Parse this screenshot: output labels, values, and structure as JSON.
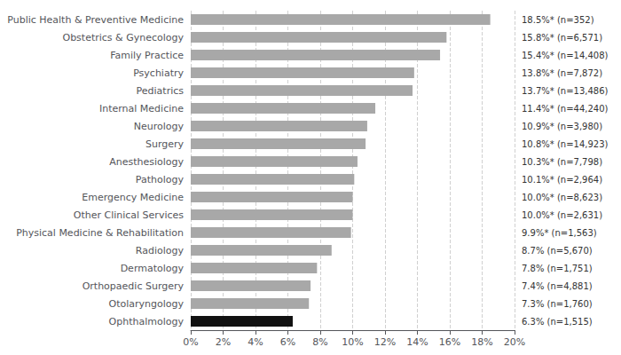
{
  "chart_data": {
    "type": "bar",
    "orientation": "horizontal",
    "categories": [
      "Public Health & Preventive Medicine",
      "Obstetrics & Gynecology",
      "Family Practice",
      "Psychiatry",
      "Pediatrics",
      "Internal Medicine",
      "Neurology",
      "Surgery",
      "Anesthesiology",
      "Pathology",
      "Emergency Medicine",
      "Other Clinical Services",
      "Physical Medicine & Rehabilitation",
      "Radiology",
      "Dermatology",
      "Orthopaedic Surgery",
      "Otolaryngology",
      "Ophthalmology"
    ],
    "values": [
      18.5,
      15.8,
      15.4,
      13.8,
      13.7,
      11.4,
      10.9,
      10.8,
      10.3,
      10.1,
      10.0,
      10.0,
      9.9,
      8.7,
      7.8,
      7.4,
      7.3,
      6.3
    ],
    "value_labels": [
      "18.5%* (n=352)",
      "15.8%* (n=6,571)",
      "15.4%* (n=14,408)",
      "13.8%* (n=7,872)",
      "13.7%* (n=13,486)",
      "11.4%* (n=44,240)",
      "10.9%* (n=3,980)",
      "10.8%* (n=14,923)",
      "10.3%* (n=7,798)",
      "10.1%* (n=2,964)",
      "10.0%* (n=8,623)",
      "10.0%* (n=2,631)",
      "9.9%* (n=1,563)",
      "8.7% (n=5,670)",
      "7.8% (n=1,751)",
      "7.4% (n=4,881)",
      "7.3% (n=1,760)",
      "6.3% (n=1,515)"
    ],
    "data_labels": true,
    "colors": [
      "#a8a8a8",
      "#a8a8a8",
      "#a8a8a8",
      "#a8a8a8",
      "#a8a8a8",
      "#a8a8a8",
      "#a8a8a8",
      "#a8a8a8",
      "#a8a8a8",
      "#a8a8a8",
      "#a8a8a8",
      "#a8a8a8",
      "#a8a8a8",
      "#a8a8a8",
      "#a8a8a8",
      "#a8a8a8",
      "#a8a8a8",
      "#111111"
    ],
    "xlim": [
      0,
      20
    ],
    "xticks": [
      {
        "value": 0,
        "label": "0%"
      },
      {
        "value": 2,
        "label": "2%"
      },
      {
        "value": 4,
        "label": "4%"
      },
      {
        "value": 6,
        "label": "6%"
      },
      {
        "value": 8,
        "label": "8%"
      },
      {
        "value": 10,
        "label": "10%"
      },
      {
        "value": 12,
        "label": "12%"
      },
      {
        "value": 14,
        "label": "14%"
      },
      {
        "value": 16,
        "label": "16%"
      },
      {
        "value": 18,
        "label": "18%"
      },
      {
        "value": 20,
        "label": "20%"
      }
    ],
    "grid": true
  }
}
